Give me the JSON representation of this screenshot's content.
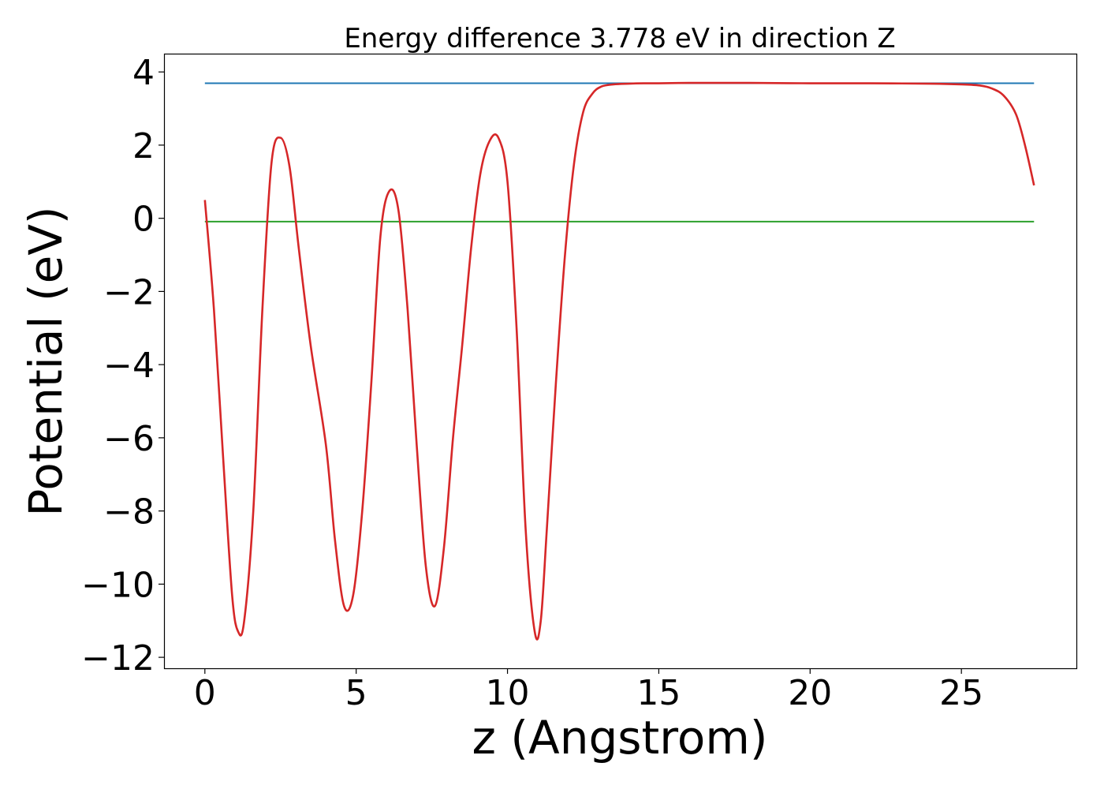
{
  "chart_data": {
    "type": "line",
    "title": "Energy difference 3.778 eV in direction Z",
    "xlabel": "z (Angstrom)",
    "ylabel": "Potential (eV)",
    "xlim": [
      -1.35,
      28.8
    ],
    "ylim": [
      -12.3,
      4.5
    ],
    "x_ticks": [
      0,
      5,
      10,
      15,
      20,
      25
    ],
    "y_ticks": [
      4,
      2,
      0,
      -2,
      -4,
      -6,
      -8,
      -10,
      -12
    ],
    "x_tick_labels": [
      "0",
      "5",
      "10",
      "15",
      "20",
      "25"
    ],
    "y_tick_labels": [
      "4",
      "2",
      "0",
      "−2",
      "−4",
      "−6",
      "−8",
      "−10",
      "−12"
    ],
    "grid": false,
    "legend": "none",
    "series": [
      {
        "color": "#1f77b4",
        "x": [
          0,
          27.4
        ],
        "y": [
          3.69,
          3.69
        ]
      },
      {
        "color": "#2ca02c",
        "x": [
          0,
          27.4
        ],
        "y": [
          -0.09,
          -0.09
        ]
      },
      {
        "color": "#d62728",
        "x": [
          0,
          0.3,
          0.6,
          0.9,
          1.1,
          1.3,
          1.6,
          1.9,
          2.2,
          2.5,
          2.8,
          3.1,
          3.5,
          4.0,
          4.3,
          4.6,
          4.9,
          5.2,
          5.5,
          5.8,
          6.1,
          6.4,
          6.7,
          7.0,
          7.3,
          7.6,
          7.9,
          8.2,
          8.5,
          8.8,
          9.1,
          9.4,
          9.7,
          10.0,
          10.3,
          10.6,
          10.9,
          11.1,
          11.3,
          11.6,
          11.9,
          12.2,
          12.5,
          12.8,
          13.1,
          13.5,
          14.0,
          14.5,
          15.0,
          16.0,
          17.0,
          18.0,
          20.0,
          22.0,
          24.0,
          25.0,
          25.6,
          26.0,
          26.4,
          26.8,
          27.1,
          27.4
        ],
        "y": [
          0.5,
          -2.5,
          -6.5,
          -10.3,
          -11.3,
          -11.0,
          -8.0,
          -2.5,
          1.5,
          2.2,
          1.4,
          -0.8,
          -3.5,
          -6.2,
          -8.8,
          -10.6,
          -10.3,
          -8.0,
          -4.5,
          -0.5,
          0.75,
          0.2,
          -2.5,
          -6.2,
          -9.5,
          -10.6,
          -9.0,
          -6.0,
          -3.5,
          -0.8,
          1.2,
          2.1,
          2.2,
          1.0,
          -3.0,
          -8.5,
          -11.3,
          -11.0,
          -8.5,
          -4.5,
          -1.0,
          1.5,
          2.9,
          3.4,
          3.6,
          3.66,
          3.68,
          3.69,
          3.69,
          3.7,
          3.7,
          3.7,
          3.69,
          3.69,
          3.68,
          3.66,
          3.63,
          3.55,
          3.35,
          2.85,
          2.0,
          0.9
        ]
      }
    ]
  }
}
